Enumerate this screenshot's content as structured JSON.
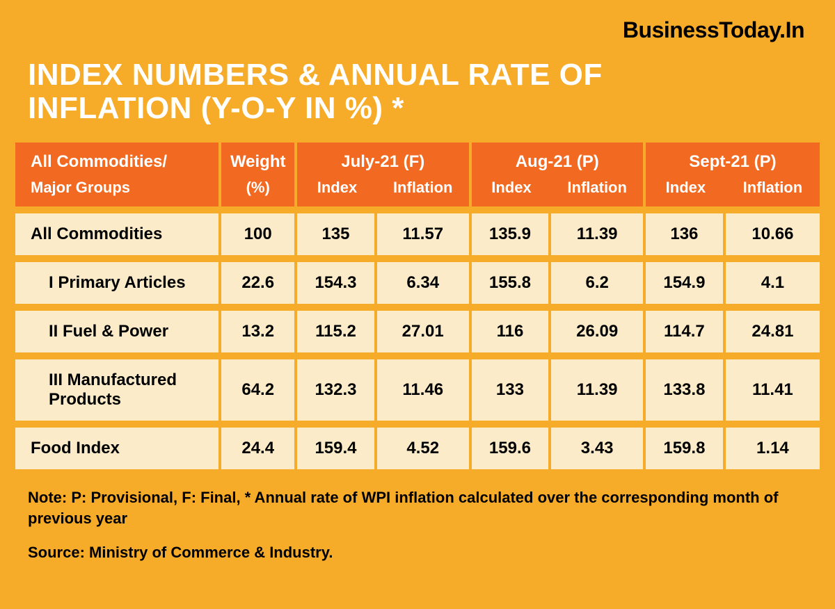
{
  "brand": "BusinessToday.In",
  "title_line1": "INDEX NUMBERS & ANNUAL RATE OF",
  "title_line2": "INFLATION (Y-O-Y IN %) *",
  "colors": {
    "page_bg": "#f6ab29",
    "header_bg": "#f26a21",
    "row_bg": "#fcebc8",
    "title_text": "#ffffff",
    "body_text": "#000000"
  },
  "typography": {
    "brand_fontsize": 32,
    "title_fontsize": 44,
    "header_fontsize": 24,
    "subheader_fontsize": 22,
    "cell_fontsize": 24,
    "footnote_fontsize": 22
  },
  "table": {
    "type": "table",
    "header": {
      "groups_label_l1": "All Commodities/",
      "groups_label_l2": "Major Groups",
      "weight_label_l1": "Weight",
      "weight_label_l2": "(%)",
      "periods": [
        {
          "label": "July-21 (F)",
          "sub1": "Index",
          "sub2": "Inflation"
        },
        {
          "label": "Aug-21 (P)",
          "sub1": "Index",
          "sub2": "Inflation"
        },
        {
          "label": "Sept-21 (P)",
          "sub1": "Index",
          "sub2": "Inflation"
        }
      ]
    },
    "rows": [
      {
        "name": "All Commodities",
        "indent": false,
        "weight": "100",
        "jul_idx": "135",
        "jul_inf": "11.57",
        "aug_idx": "135.9",
        "aug_inf": "11.39",
        "sep_idx": "136",
        "sep_inf": "10.66"
      },
      {
        "name": "I Primary Articles",
        "indent": true,
        "weight": "22.6",
        "jul_idx": "154.3",
        "jul_inf": "6.34",
        "aug_idx": "155.8",
        "aug_inf": "6.2",
        "sep_idx": "154.9",
        "sep_inf": "4.1"
      },
      {
        "name": "II Fuel & Power",
        "indent": true,
        "weight": "13.2",
        "jul_idx": "115.2",
        "jul_inf": "27.01",
        "aug_idx": "116",
        "aug_inf": "26.09",
        "sep_idx": "114.7",
        "sep_inf": "24.81"
      },
      {
        "name": "III Manufactured Products",
        "indent": true,
        "weight": "64.2",
        "jul_idx": "132.3",
        "jul_inf": "11.46",
        "aug_idx": "133",
        "aug_inf": "11.39",
        "sep_idx": "133.8",
        "sep_inf": "11.41"
      },
      {
        "name": "Food Index",
        "indent": false,
        "weight": "24.4",
        "jul_idx": "159.4",
        "jul_inf": "4.52",
        "aug_idx": "159.6",
        "aug_inf": "3.43",
        "sep_idx": "159.8",
        "sep_inf": "1.14"
      }
    ]
  },
  "footnote": "Note: P: Provisional, F: Final, * Annual rate of WPI inflation calculated over the corresponding month of previous year",
  "source": "Source: Ministry of Commerce & Industry."
}
